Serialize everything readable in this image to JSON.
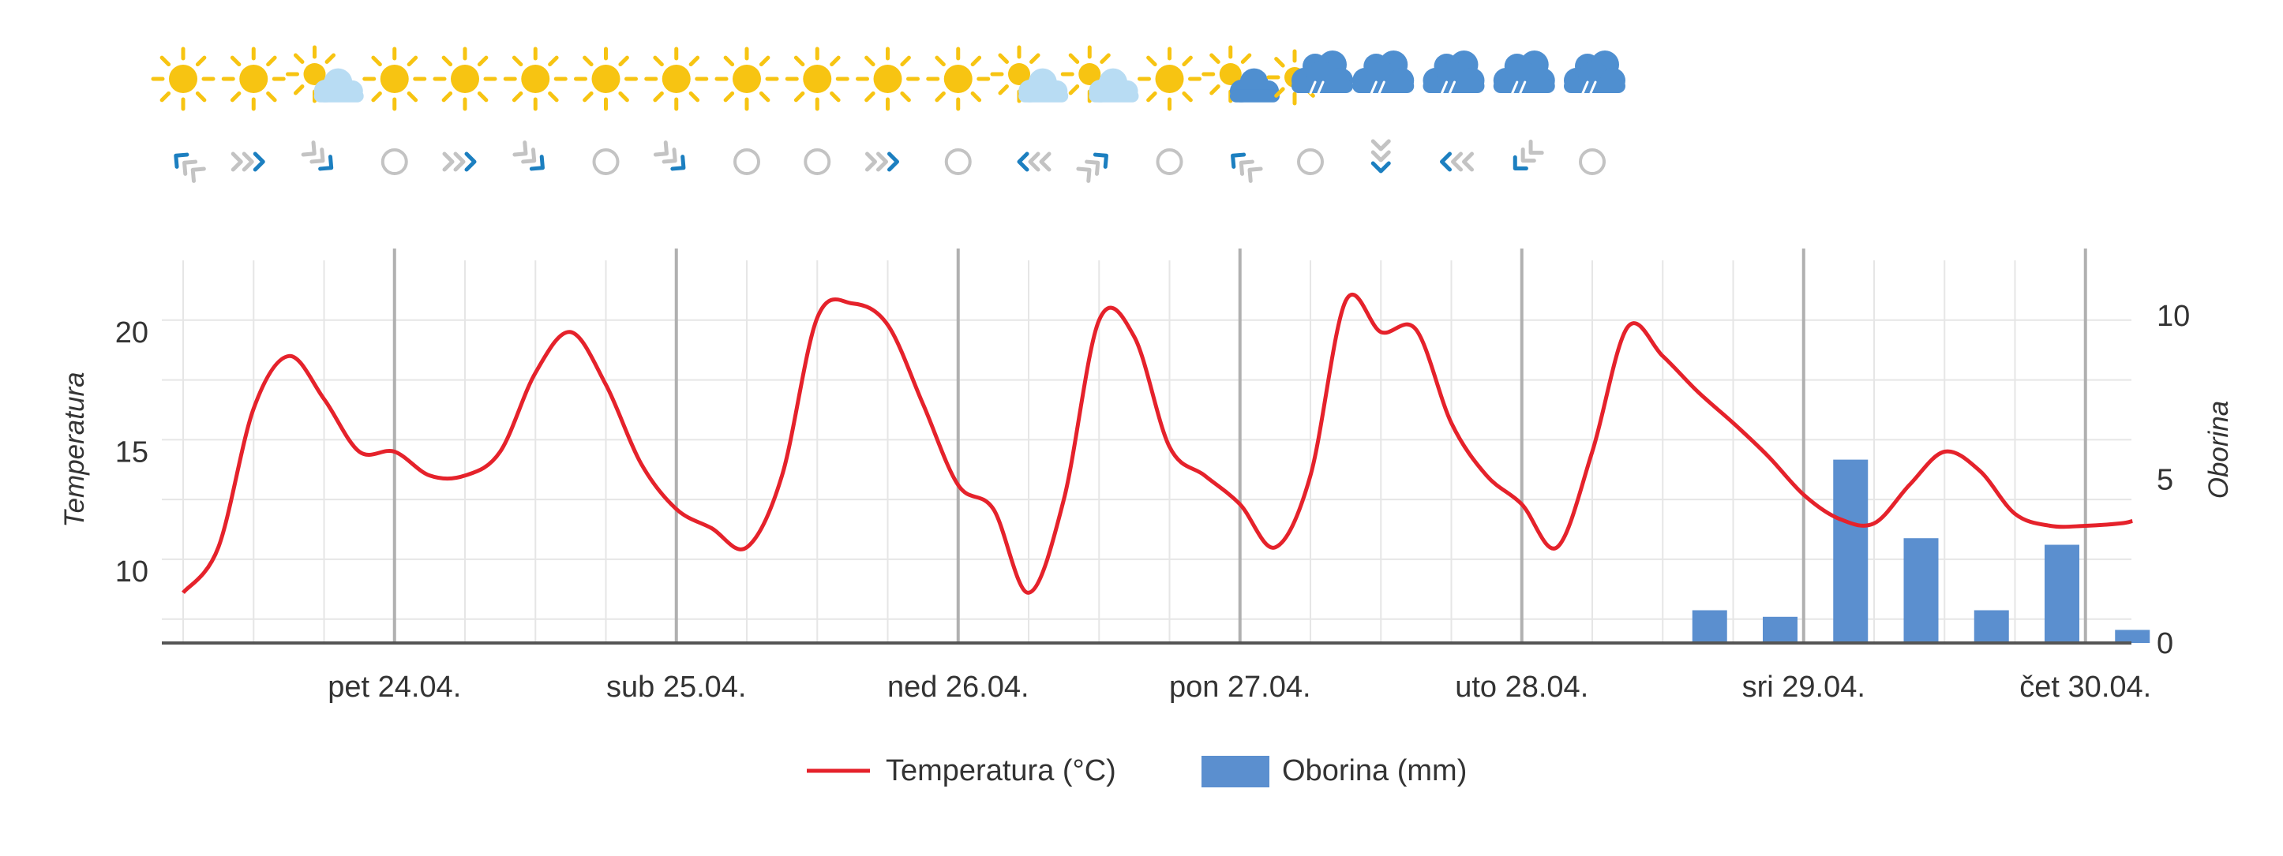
{
  "chart_data": {
    "type": "line+bar",
    "title": "",
    "x_range": [
      "2020-04-23 06:00",
      "2020-04-30 07:00"
    ],
    "x_ticks": [
      "pet 24.04.",
      "sub 25.04.",
      "ned 26.04.",
      "pon 27.04.",
      "uto 28.04.",
      "sri 29.04.",
      "čet 30.04."
    ],
    "y_left": {
      "label": "Temperatura",
      "ticks": [
        "10",
        "15",
        "20"
      ],
      "range": [
        7,
        23
      ]
    },
    "y_right": {
      "label": "Oborina",
      "ticks": [
        "0",
        "5",
        "10"
      ],
      "range": [
        0,
        11
      ]
    },
    "legend": {
      "position": "bottom-center"
    },
    "grid": true,
    "series": [
      {
        "name": "Temperatura (°C)",
        "type": "line",
        "color": "#e5222b",
        "points": [
          [
            "2020-04-23 06:00",
            9.1
          ],
          [
            "2020-04-23 09:00",
            11.0
          ],
          [
            "2020-04-23 12:00",
            16.8
          ],
          [
            "2020-04-23 15:00",
            19.0
          ],
          [
            "2020-04-23 18:00",
            17.2
          ],
          [
            "2020-04-23 21:00",
            15.0
          ],
          [
            "2020-04-24 00:00",
            15.0
          ],
          [
            "2020-04-24 03:00",
            14.0
          ],
          [
            "2020-04-24 06:00",
            14.0
          ],
          [
            "2020-04-24 09:00",
            15.0
          ],
          [
            "2020-04-24 12:00",
            18.3
          ],
          [
            "2020-04-24 15:00",
            20.0
          ],
          [
            "2020-04-24 18:00",
            17.8
          ],
          [
            "2020-04-24 21:00",
            14.5
          ],
          [
            "2020-04-25 00:00",
            12.6
          ],
          [
            "2020-04-25 03:00",
            11.8
          ],
          [
            "2020-04-25 06:00",
            11.0
          ],
          [
            "2020-04-25 09:00",
            14.0
          ],
          [
            "2020-04-25 12:00",
            20.6
          ],
          [
            "2020-04-25 15:00",
            21.2
          ],
          [
            "2020-04-25 18:00",
            20.3
          ],
          [
            "2020-04-25 21:00",
            17.0
          ],
          [
            "2020-04-26 00:00",
            13.6
          ],
          [
            "2020-04-26 03:00",
            12.6
          ],
          [
            "2020-04-26 06:00",
            9.1
          ],
          [
            "2020-04-26 09:00",
            13.0
          ],
          [
            "2020-04-26 12:00",
            20.5
          ],
          [
            "2020-04-26 15:00",
            19.8
          ],
          [
            "2020-04-26 18:00",
            15.2
          ],
          [
            "2020-04-26 21:00",
            14.0
          ],
          [
            "2020-04-27 00:00",
            12.8
          ],
          [
            "2020-04-27 03:00",
            11.0
          ],
          [
            "2020-04-27 06:00",
            14.0
          ],
          [
            "2020-04-27 09:00",
            21.3
          ],
          [
            "2020-04-27 12:00",
            20.0
          ],
          [
            "2020-04-27 15:00",
            20.1
          ],
          [
            "2020-04-27 18:00",
            16.2
          ],
          [
            "2020-04-27 21:00",
            14.0
          ],
          [
            "2020-04-28 00:00",
            12.8
          ],
          [
            "2020-04-28 03:00",
            11.0
          ],
          [
            "2020-04-28 06:00",
            15.0
          ],
          [
            "2020-04-28 09:00",
            20.2
          ],
          [
            "2020-04-28 12:00",
            19.0
          ],
          [
            "2020-04-28 15:00",
            17.5
          ],
          [
            "2020-04-28 18:00",
            16.2
          ],
          [
            "2020-04-28 21:00",
            14.8
          ],
          [
            "2020-04-29 00:00",
            13.2
          ],
          [
            "2020-04-29 03:00",
            12.2
          ],
          [
            "2020-04-29 06:00",
            12.0
          ],
          [
            "2020-04-29 09:00",
            13.6
          ],
          [
            "2020-04-29 12:00",
            15.0
          ],
          [
            "2020-04-29 15:00",
            14.2
          ],
          [
            "2020-04-29 18:00",
            12.4
          ],
          [
            "2020-04-29 21:00",
            11.9
          ],
          [
            "2020-04-30 00:00",
            11.9
          ],
          [
            "2020-04-30 03:00",
            12.0
          ],
          [
            "2020-04-30 04:00",
            12.1
          ]
        ]
      },
      {
        "name": "Oborina (mm)",
        "type": "bar",
        "color": "#5b8fcf",
        "points": [
          [
            "2020-04-28 16:00",
            1.0
          ],
          [
            "2020-04-28 22:00",
            0.8
          ],
          [
            "2020-04-29 04:00",
            5.6
          ],
          [
            "2020-04-29 10:00",
            3.2
          ],
          [
            "2020-04-29 16:00",
            1.0
          ],
          [
            "2020-04-29 22:00",
            3.0
          ],
          [
            "2020-04-30 04:00",
            0.4
          ]
        ]
      }
    ]
  },
  "forecast_strip": [
    {
      "time": "2020-04-23 06:00",
      "weather": "sun-icon",
      "wind": "nw-arrow"
    },
    {
      "time": "2020-04-23 12:00",
      "weather": "sun-icon",
      "wind": "e-arrow"
    },
    {
      "time": "2020-04-23 18:00",
      "weather": "partly-cloudy-light-icon",
      "wind": "se-arrow"
    },
    {
      "time": "2020-04-24 00:00",
      "weather": "sun-icon",
      "wind": "calm-circle"
    },
    {
      "time": "2020-04-24 06:00",
      "weather": "sun-icon",
      "wind": "e-arrow"
    },
    {
      "time": "2020-04-24 12:00",
      "weather": "sun-icon",
      "wind": "se-arrow"
    },
    {
      "time": "2020-04-24 18:00",
      "weather": "sun-icon",
      "wind": "calm-circle"
    },
    {
      "time": "2020-04-25 00:00",
      "weather": "sun-icon",
      "wind": "se-arrow"
    },
    {
      "time": "2020-04-25 06:00",
      "weather": "sun-icon",
      "wind": "calm-circle"
    },
    {
      "time": "2020-04-25 12:00",
      "weather": "sun-icon",
      "wind": "calm-circle"
    },
    {
      "time": "2020-04-25 18:00",
      "weather": "sun-icon",
      "wind": "e-arrow"
    },
    {
      "time": "2020-04-26 00:00",
      "weather": "sun-icon",
      "wind": "calm-circle"
    },
    {
      "time": "2020-04-26 06:00",
      "weather": "partly-cloudy-light-icon",
      "wind": "w-arrow"
    },
    {
      "time": "2020-04-26 12:00",
      "weather": "partly-cloudy-light-icon",
      "wind": "ne-arrow"
    },
    {
      "time": "2020-04-26 18:00",
      "weather": "sun-icon",
      "wind": "calm-circle"
    },
    {
      "time": "2020-04-27 00:00",
      "weather": "partly-cloudy-dark-icon",
      "wind": "nw-arrow"
    },
    {
      "time": "2020-04-27 06:00",
      "weather": "sun-rain-icon",
      "wind": "calm-circle"
    },
    {
      "time": "2020-04-27 12:00",
      "weather": "rain-cloud-icon",
      "wind": "s-arrow"
    },
    {
      "time": "2020-04-27 18:00",
      "weather": "rain-cloud-icon",
      "wind": "w-arrow"
    },
    {
      "time": "2020-04-28 00:00",
      "weather": "rain-cloud-icon",
      "wind": "sw-arrow"
    },
    {
      "time": "2020-04-28 06:00",
      "weather": "rain-cloud-icon",
      "wind": "calm-circle"
    }
  ],
  "legend": {
    "temperature_label": "Temperatura (°C)",
    "precip_label": "Oborina (mm)"
  },
  "colors": {
    "temperature": "#e5222b",
    "precipitation": "#5b8fcf",
    "sun": "#f7c412",
    "cloud_light": "#b8dcf3",
    "cloud_dark": "#4f8fd0",
    "wind_blue": "#1c7fc0",
    "wind_grey": "#c3c3c3",
    "grid": "#e6e6e6",
    "day_line": "#b0b0b0",
    "axis": "#555555",
    "text": "#333333"
  }
}
